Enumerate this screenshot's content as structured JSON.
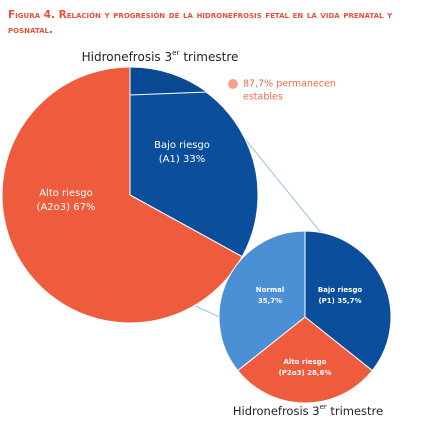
{
  "caption": "Figura 4. Relación y progresión de la hidronefrosis fetal en la vida prenatal y posnatal.",
  "chart_data": [
    {
      "type": "pie",
      "title": [
        "Hidronefrosis 3",
        "er",
        " trimestre"
      ],
      "categories": [
        "Bajo riesgo",
        "Alto riesgo"
      ],
      "values": [
        33,
        67
      ],
      "value_labels": [
        "(A1) 33%",
        "(A2o3) 67%"
      ],
      "colors": [
        "#0b4f9c",
        "#ef5b3d"
      ],
      "annotation": [
        "87,7% permanecen",
        "estables"
      ],
      "annotation_color": "#ef6a4c"
    },
    {
      "type": "pie",
      "title": [
        "Hidronefrosis 3",
        "er",
        " trimestre"
      ],
      "categories": [
        "Bajo riesgo",
        "Alto riesgo",
        "Normal"
      ],
      "values": [
        35.7,
        28.6,
        35.7
      ],
      "value_labels": [
        "(P1) 35,7%",
        "(P2o3) 28,6%",
        "35,7%"
      ],
      "colors": [
        "#0b4f9c",
        "#ef5b3d",
        "#4b8fd4"
      ]
    }
  ]
}
